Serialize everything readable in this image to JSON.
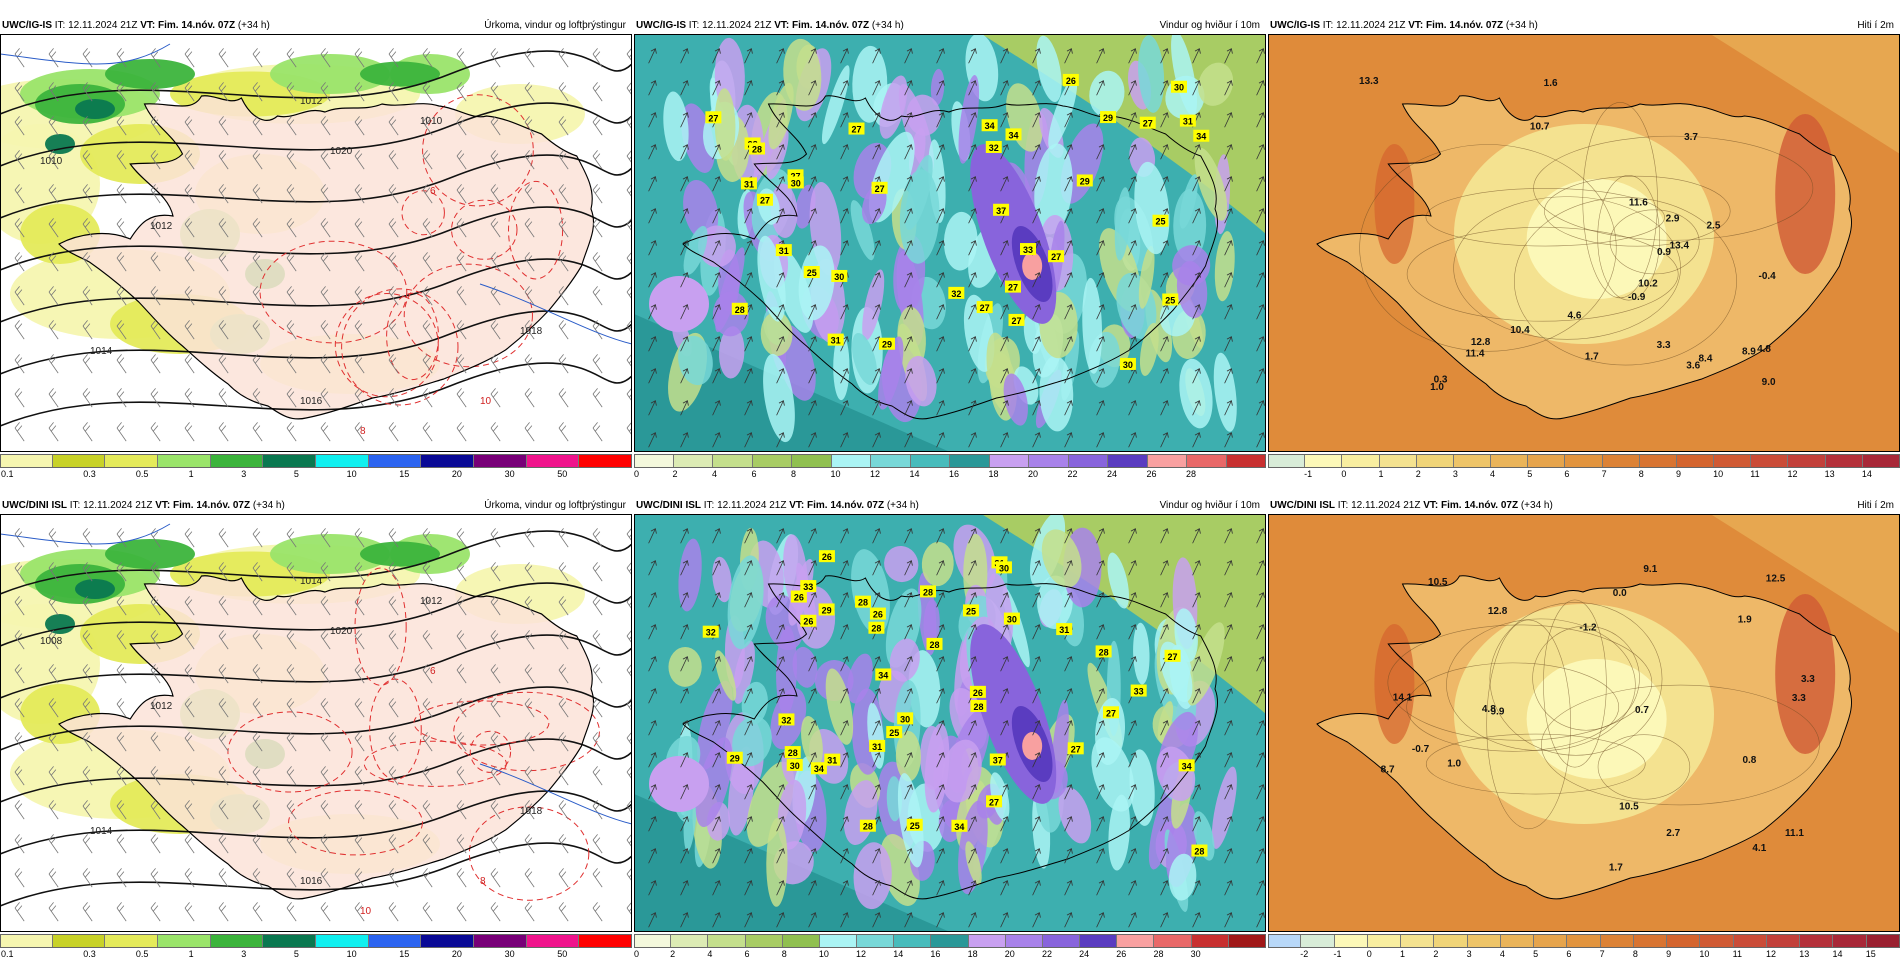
{
  "panels": [
    {
      "model": "UWC/IG-IS",
      "it": "IT: 12.11.2024 21Z",
      "vt_label": "VT:",
      "vt": "Fim. 14.nóv. 07Z",
      "lead": "(+34 h)",
      "title": "Úrkoma, vindur og loftþrýstingur",
      "type": "precip",
      "ticks": [
        "0.1",
        "0.3",
        "0.5",
        "1",
        "3",
        "5",
        "10",
        "15",
        "20",
        "30",
        "50"
      ],
      "colors": [
        "#f6f6b0",
        "#c8d228",
        "#e4ea5a",
        "#9ae46a",
        "#3cb43c",
        "#0a7850",
        "#10f0f0",
        "#2c64f0",
        "#0a0a96",
        "#780078",
        "#f0148c",
        "#ff0000"
      ],
      "labels": [
        "1010",
        "1012",
        "1014",
        "1016",
        "1018",
        "1020",
        "1012",
        "1010",
        "6",
        "10",
        "8"
      ]
    },
    {
      "model": "UWC/IG-IS",
      "it": "IT: 12.11.2024 21Z",
      "vt_label": "VT:",
      "vt": "Fim. 14.nóv. 07Z",
      "lead": "(+34 h)",
      "title": "Vindur og hviður í 10m",
      "type": "wind",
      "ticks": [
        "0",
        "2",
        "4",
        "6",
        "8",
        "10",
        "12",
        "14",
        "16",
        "18",
        "20",
        "22",
        "24",
        "26",
        "28"
      ],
      "colors": [
        "#f4f8dc",
        "#dcebb4",
        "#c4df8c",
        "#a8cc64",
        "#90c050",
        "#aaf4f4",
        "#78d8d8",
        "#48bcbc",
        "#2a9898",
        "#c8a0f0",
        "#a882ea",
        "#8864dc",
        "#5a3cc0",
        "#f8a0a0",
        "#e86868",
        "#c83030"
      ],
      "gusts": [
        "27",
        "27",
        "31",
        "30",
        "27",
        "30",
        "27",
        "28",
        "31",
        "32",
        "29",
        "32",
        "28",
        "27",
        "31",
        "27",
        "27",
        "31",
        "34",
        "25",
        "28",
        "27",
        "27",
        "30",
        "29",
        "37",
        "34",
        "33",
        "25",
        "34",
        "30",
        "27",
        "29",
        "26",
        "25"
      ]
    },
    {
      "model": "UWC/IG-IS",
      "it": "IT: 12.11.2024 21Z",
      "vt_label": "VT:",
      "vt": "Fim. 14.nóv. 07Z",
      "lead": "(+34 h)",
      "title": "Hiti í 2m",
      "type": "temp",
      "ticks": [
        "-1",
        "0",
        "1",
        "2",
        "3",
        "4",
        "5",
        "6",
        "7",
        "8",
        "9",
        "10",
        "11",
        "12",
        "13",
        "14"
      ],
      "colors": [
        "#d8ecd8",
        "#fcf8b8",
        "#f8eea0",
        "#f4e290",
        "#f0d478",
        "#eec468",
        "#eab45a",
        "#e6a44c",
        "#e2943e",
        "#dc8236",
        "#d87432",
        "#d4642e",
        "#d05a34",
        "#ca4c38",
        "#c2403a",
        "#b4303a",
        "#a82838"
      ],
      "temps": [
        "3.3",
        "11.4",
        "8.4",
        "8.9",
        "9.0",
        "10.2",
        "2.9",
        "11.6",
        "3.7",
        "1.7",
        "2.5",
        "10.4",
        "0.9",
        "13.4",
        "4.8",
        "4.6",
        "3.6",
        "-0.9",
        "12.8",
        "0.3",
        "-0.4",
        "10.7",
        "1.6",
        "13.3",
        "1.0"
      ]
    },
    {
      "model": "UWC/DINI ISL",
      "it": "IT: 12.11.2024 21Z",
      "vt_label": "VT:",
      "vt": "Fim. 14.nóv. 07Z",
      "lead": "(+34 h)",
      "title": "Úrkoma, vindur og loftþrýstingur",
      "type": "precip",
      "ticks": [
        "0.1",
        "0.3",
        "0.5",
        "1",
        "3",
        "5",
        "10",
        "15",
        "20",
        "30",
        "50"
      ],
      "colors": [
        "#f6f6b0",
        "#c8d228",
        "#e4ea5a",
        "#9ae46a",
        "#3cb43c",
        "#0a7850",
        "#10f0f0",
        "#2c64f0",
        "#0a0a96",
        "#780078",
        "#f0148c",
        "#ff0000"
      ],
      "labels": [
        "1008",
        "1012",
        "1014",
        "1016",
        "1018",
        "1020",
        "1014",
        "1012",
        "6",
        "8",
        "10"
      ]
    },
    {
      "model": "UWC/DINI ISL",
      "it": "IT: 12.11.2024 21Z",
      "vt_label": "VT:",
      "vt": "Fim. 14.nóv. 07Z",
      "lead": "(+34 h)",
      "title": "Vindur og hviður í 10m",
      "type": "wind",
      "ticks": [
        "0",
        "2",
        "4",
        "6",
        "8",
        "10",
        "12",
        "14",
        "16",
        "18",
        "20",
        "22",
        "24",
        "26",
        "28",
        "30"
      ],
      "colors": [
        "#f4f8dc",
        "#dcebb4",
        "#c4df8c",
        "#a8cc64",
        "#90c050",
        "#aaf4f4",
        "#78d8d8",
        "#48bcbc",
        "#2a9898",
        "#c8a0f0",
        "#a882ea",
        "#8864dc",
        "#5a3cc0",
        "#f8a0a0",
        "#e86868",
        "#c83030",
        "#a01818"
      ],
      "gusts": [
        "26",
        "30",
        "26",
        "28",
        "30",
        "29",
        "34",
        "25",
        "28",
        "31",
        "28",
        "28",
        "27",
        "33",
        "32",
        "28",
        "34",
        "30",
        "28",
        "31",
        "25",
        "27",
        "28",
        "31",
        "26",
        "30",
        "27",
        "25",
        "28",
        "26",
        "37",
        "34",
        "28",
        "29",
        "33",
        "32",
        "26",
        "27",
        "34",
        "31"
      ]
    },
    {
      "model": "UWC/DINI ISL",
      "it": "IT: 12.11.2024 21Z",
      "vt_label": "VT:",
      "vt": "Fim. 14.nóv. 07Z",
      "lead": "(+34 h)",
      "title": "Hiti í 2m",
      "type": "temp",
      "ticks": [
        "-2",
        "-1",
        "0",
        "1",
        "2",
        "3",
        "4",
        "5",
        "6",
        "7",
        "8",
        "9",
        "10",
        "11",
        "12",
        "13",
        "14",
        "15"
      ],
      "colors": [
        "#b8d8f8",
        "#d8ecd8",
        "#fcf8b8",
        "#f8eea0",
        "#f4e290",
        "#f0d478",
        "#eec468",
        "#eab45a",
        "#e6a44c",
        "#e2943e",
        "#dc8236",
        "#d87432",
        "#d4642e",
        "#d05a34",
        "#ca4c38",
        "#c2403a",
        "#b4303a",
        "#a82838",
        "#9a2030"
      ],
      "temps": [
        "3.3",
        "11.1",
        "8.7",
        "9.1",
        "0.8",
        "2.7",
        "9.9",
        "10.5",
        "1.9",
        "12.8",
        "4.8",
        "4.1",
        "3.3",
        "-1.2",
        "14.1",
        "0.7",
        "-0.7",
        "12.5",
        "10.5",
        "1.7",
        "0.0",
        "1.0"
      ]
    }
  ]
}
